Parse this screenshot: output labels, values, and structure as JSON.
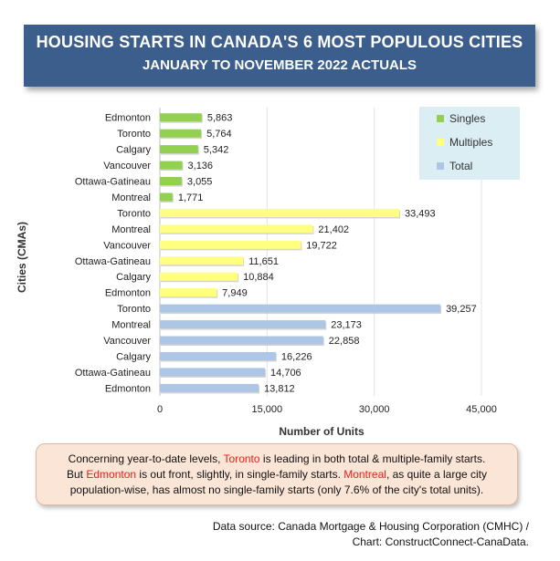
{
  "title": {
    "line1": "HOUSING STARTS IN CANADA'S 6 MOST POPULOUS CITIES",
    "line2": "JANUARY TO NOVEMBER 2022 ACTUALS"
  },
  "chart_data": {
    "type": "bar",
    "orientation": "horizontal",
    "xlabel": "Number of Units",
    "ylabel": "Cities (CMAs)",
    "xlim": [
      0,
      45000
    ],
    "xticks": [
      "0",
      "15,000",
      "30,000",
      "45,000"
    ],
    "legend_position": "top-right",
    "series": [
      {
        "name": "Singles",
        "color": "#92d050",
        "categories": [
          "Edmonton",
          "Toronto",
          "Calgary",
          "Vancouver",
          "Ottawa-Gatineau",
          "Montreal"
        ],
        "values": [
          5863,
          5764,
          5342,
          3136,
          3055,
          1771
        ],
        "labels": [
          "5,863",
          "5,764",
          "5,342",
          "3,136",
          "3,055",
          "1,771"
        ]
      },
      {
        "name": "Multiples",
        "color": "#ffff80",
        "categories": [
          "Toronto",
          "Montreal",
          "Vancouver",
          "Ottawa-Gatineau",
          "Calgary",
          "Edmonton"
        ],
        "values": [
          33493,
          21402,
          19722,
          11651,
          10884,
          7949
        ],
        "labels": [
          "33,493",
          "21,402",
          "19,722",
          "11,651",
          "10,884",
          "7,949"
        ]
      },
      {
        "name": "Total",
        "color": "#adc6e6",
        "categories": [
          "Toronto",
          "Montreal",
          "Vancouver",
          "Calgary",
          "Ottawa-Gatineau",
          "Edmonton"
        ],
        "values": [
          39257,
          23173,
          22858,
          16226,
          14706,
          13812
        ],
        "labels": [
          "39,257",
          "23,173",
          "22,858",
          "16,226",
          "14,706",
          "13,812"
        ]
      }
    ]
  },
  "note": {
    "p1": "Concerning year-to-date levels, ",
    "toronto": "Toronto",
    "p2": " is leading in both total & multiple-family starts.",
    "p3": "But ",
    "edmonton": "Edmonton",
    "p4": " is out front, slightly, in single-family starts. ",
    "montreal": "Montreal",
    "p5": ", as quite a large city",
    "p6": "population-wise, has almost no single-family starts (only 7.6% of the city's total units)."
  },
  "source": {
    "line1": "Data source: Canada Mortgage & Housing Corporation (CMHC) /",
    "line2": "Chart: ConstructConnect-CanaData."
  }
}
